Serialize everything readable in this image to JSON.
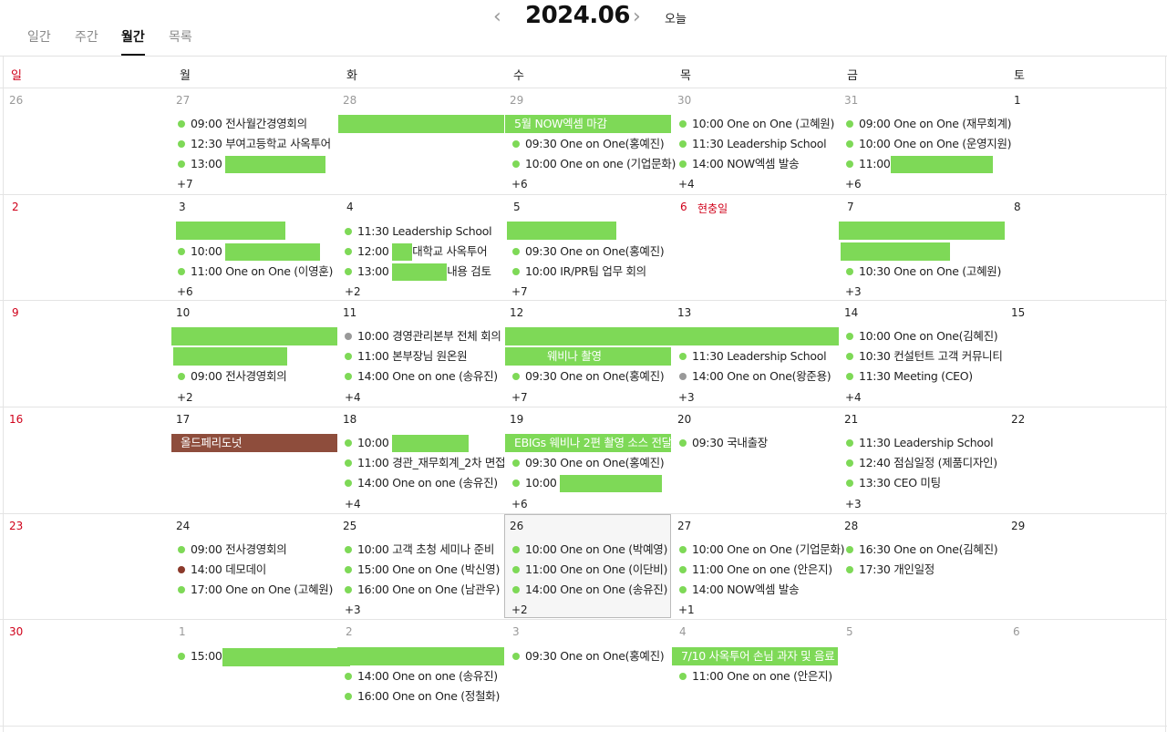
{
  "tabs": [
    "일간",
    "주간",
    "월간",
    "목록"
  ],
  "month_title": "2024.06",
  "today_label": "오늘",
  "weekdays": [
    "일",
    "월",
    "화",
    "수",
    "목",
    "금",
    "토"
  ],
  "dates": [
    [
      "26",
      "27",
      "28",
      "29",
      "30",
      "31",
      "1"
    ],
    [
      "2",
      "3",
      "4",
      "5",
      "6",
      "7",
      "8"
    ],
    [
      "9",
      "10",
      "11",
      "12",
      "13",
      "14",
      "15"
    ],
    [
      "16",
      "17",
      "18",
      "19",
      "20",
      "21",
      "22"
    ],
    [
      "23",
      "24",
      "25",
      "26",
      "27",
      "28",
      "29"
    ],
    [
      "30",
      "1",
      "2",
      "3",
      "4",
      "5",
      "6"
    ]
  ],
  "holiday": "현충일",
  "events": {
    "w1_mon_1": "09:00 전사월간경영회의",
    "w1_mon_2": "12:30 부여고등학교 사옥투어",
    "w1_mon_3": "13:00",
    "w1_mon_more": "+7",
    "w1_wed_bar": "5월 NOW엑셈 마감",
    "w1_wed_1": "09:30 One on One(홍예진)",
    "w1_wed_2": "10:00 One on one (기업문화)",
    "w1_wed_more": "+6",
    "w1_thu_1": "10:00 One on One (고혜원)",
    "w1_thu_2": "11:30 Leadership School",
    "w1_thu_3": "14:00 NOW엑셈 발송",
    "w1_thu_more": "+4",
    "w1_fri_1": "09:00 One on One (재무회계)",
    "w1_fri_2": "10:00 One on One (운영지원)",
    "w1_fri_3": "11:00",
    "w1_fri_more": "+6",
    "w2_mon_2": "10:00 ",
    "w2_mon_3": "11:00 One on One (이영훈)",
    "w2_mon_more": "+6",
    "w2_tue_1": "11:30 Leadership School",
    "w2_tue_2a": "12:00 ",
    "w2_tue_2b": "대학교 사옥투어",
    "w2_tue_3a": "13:00 ",
    "w2_tue_3b": "내용 검토",
    "w2_tue_more": "+2",
    "w2_wed_1": "09:30 One on One(홍예진)",
    "w2_wed_2": "10:00 IR/PR팀 업무 회의",
    "w2_wed_more": "+7",
    "w2_fri_1": "10:30 One on One (고혜원)",
    "w2_fri_more": "+3",
    "w3_mon_1": "09:00 전사경영회의",
    "w3_mon_more": "+2",
    "w3_tue_1": "10:00 경영관리본부 전체 회의",
    "w3_tue_2": "11:00 본부장님 원온원",
    "w3_tue_3": "14:00 One on one (송유진)",
    "w3_tue_more": "+4",
    "w3_wed_bar": "웨비나 촬영",
    "w3_wed_1": "09:30 One on One(홍예진)",
    "w3_wed_more": "+7",
    "w3_thu_1": "11:30 Leadership School",
    "w3_thu_2": "14:00 One on One(왕준용)",
    "w3_thu_more": "+3",
    "w3_fri_1": "10:00 One on One(김혜진)",
    "w3_fri_2": "10:30 컨설턴트 고객 커뮤니티",
    "w3_fri_3": "11:30 Meeting (CEO)",
    "w3_fri_more": "+4",
    "w4_mon_bar": "올드페리도넛",
    "w4_tue_1": "10:00",
    "w4_tue_2": "11:00 경관_재무회계_2차 면접",
    "w4_tue_3": "14:00 One on one (송유진)",
    "w4_tue_more": "+4",
    "w4_wed_bar": "EBIGs 웨비나 2편 촬영 소스 전달",
    "w4_wed_1": "09:30 One on One(홍예진)",
    "w4_wed_2": "10:00",
    "w4_wed_more": "+6",
    "w4_thu_1": "09:30 국내출장",
    "w4_fri_1": "11:30 Leadership School",
    "w4_fri_2": "12:40 점심일정 (제품디자인)",
    "w4_fri_3": "13:30 CEO 미팅",
    "w4_fri_more": "+3",
    "w5_mon_1": "09:00 전사경영회의",
    "w5_mon_2": "14:00 데모데이",
    "w5_mon_3": "17:00 One on One (고혜원)",
    "w5_tue_1": "10:00 고객 초청 세미나 준비",
    "w5_tue_2": "15:00 One on One (박신영)",
    "w5_tue_3": "16:00 One on One (남관우)",
    "w5_tue_more": "+3",
    "w5_wed_1": "10:00 One on One (박예영)",
    "w5_wed_2": "11:00 One on One (이단비)",
    "w5_wed_3": "14:00 One on One (송유진)",
    "w5_wed_more": "+2",
    "w5_thu_1": "10:00 One on One (기업문화)",
    "w5_thu_2": "11:00 One on one (안은지)",
    "w5_thu_3": "14:00 NOW엑셈 발송",
    "w5_thu_more": "+1",
    "w5_fri_1": "16:30 One on One(김혜진)",
    "w5_fri_2": "17:30 개인일정",
    "w6_mon_1": "15:00",
    "w6_tue_2": "14:00 One on one (송유진)",
    "w6_tue_3": "16:00 One on One (정철화)",
    "w6_wed_1": "09:30 One on One(홍예진)",
    "w6_thu_bar": "7/10 사옥투어 손님 과자 및 음료",
    "w6_thu_1": "11:00 One on one (안은지)"
  },
  "colors": {
    "event_green": "#7ed957",
    "brown_bar": "#8e4d3c",
    "sunday_red": "#d0021b",
    "muted_gray": "#999999"
  }
}
